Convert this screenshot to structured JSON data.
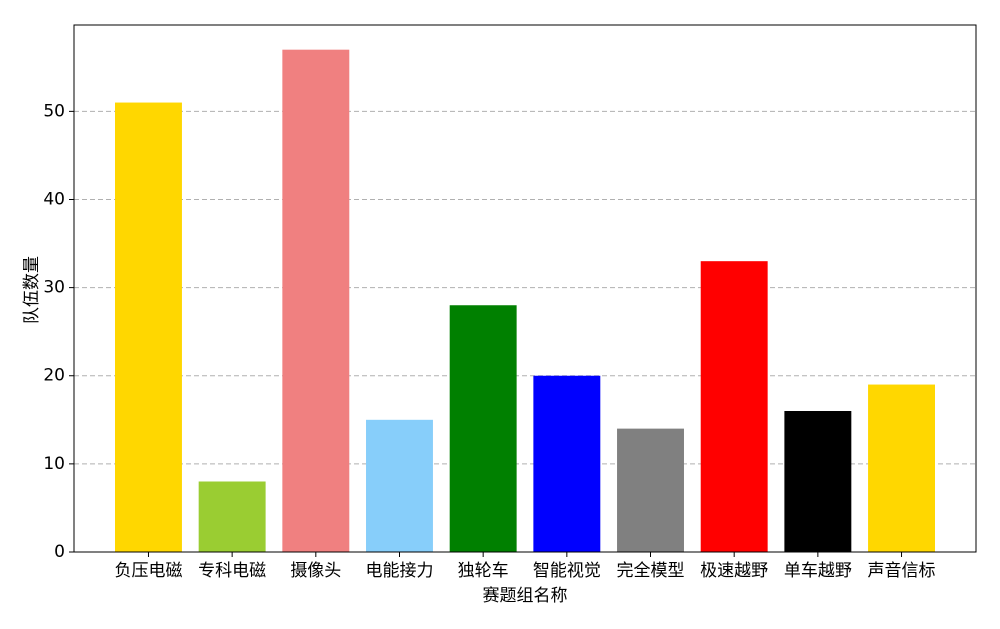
{
  "chart_data": {
    "type": "bar",
    "x_label": "赛题组名称",
    "y_label": "队伍数量",
    "categories": [
      "负压电磁",
      "专科电磁",
      "摄像头",
      "电能接力",
      "独轮车",
      "智能视觉",
      "完全模型",
      "极速越野",
      "单车越野",
      "声音信标"
    ],
    "values": [
      51,
      8,
      57,
      15,
      28,
      20,
      14,
      33,
      16,
      19
    ],
    "colors": [
      "#ffd700",
      "#9acd32",
      "#f08080",
      "#87cefa",
      "#008000",
      "#0000ff",
      "#808080",
      "#ff0000",
      "#000000",
      "#ffd700"
    ],
    "ylim": [
      0,
      59.8
    ],
    "yticks": [
      0,
      10,
      20,
      30,
      40,
      50
    ],
    "grid": true
  }
}
